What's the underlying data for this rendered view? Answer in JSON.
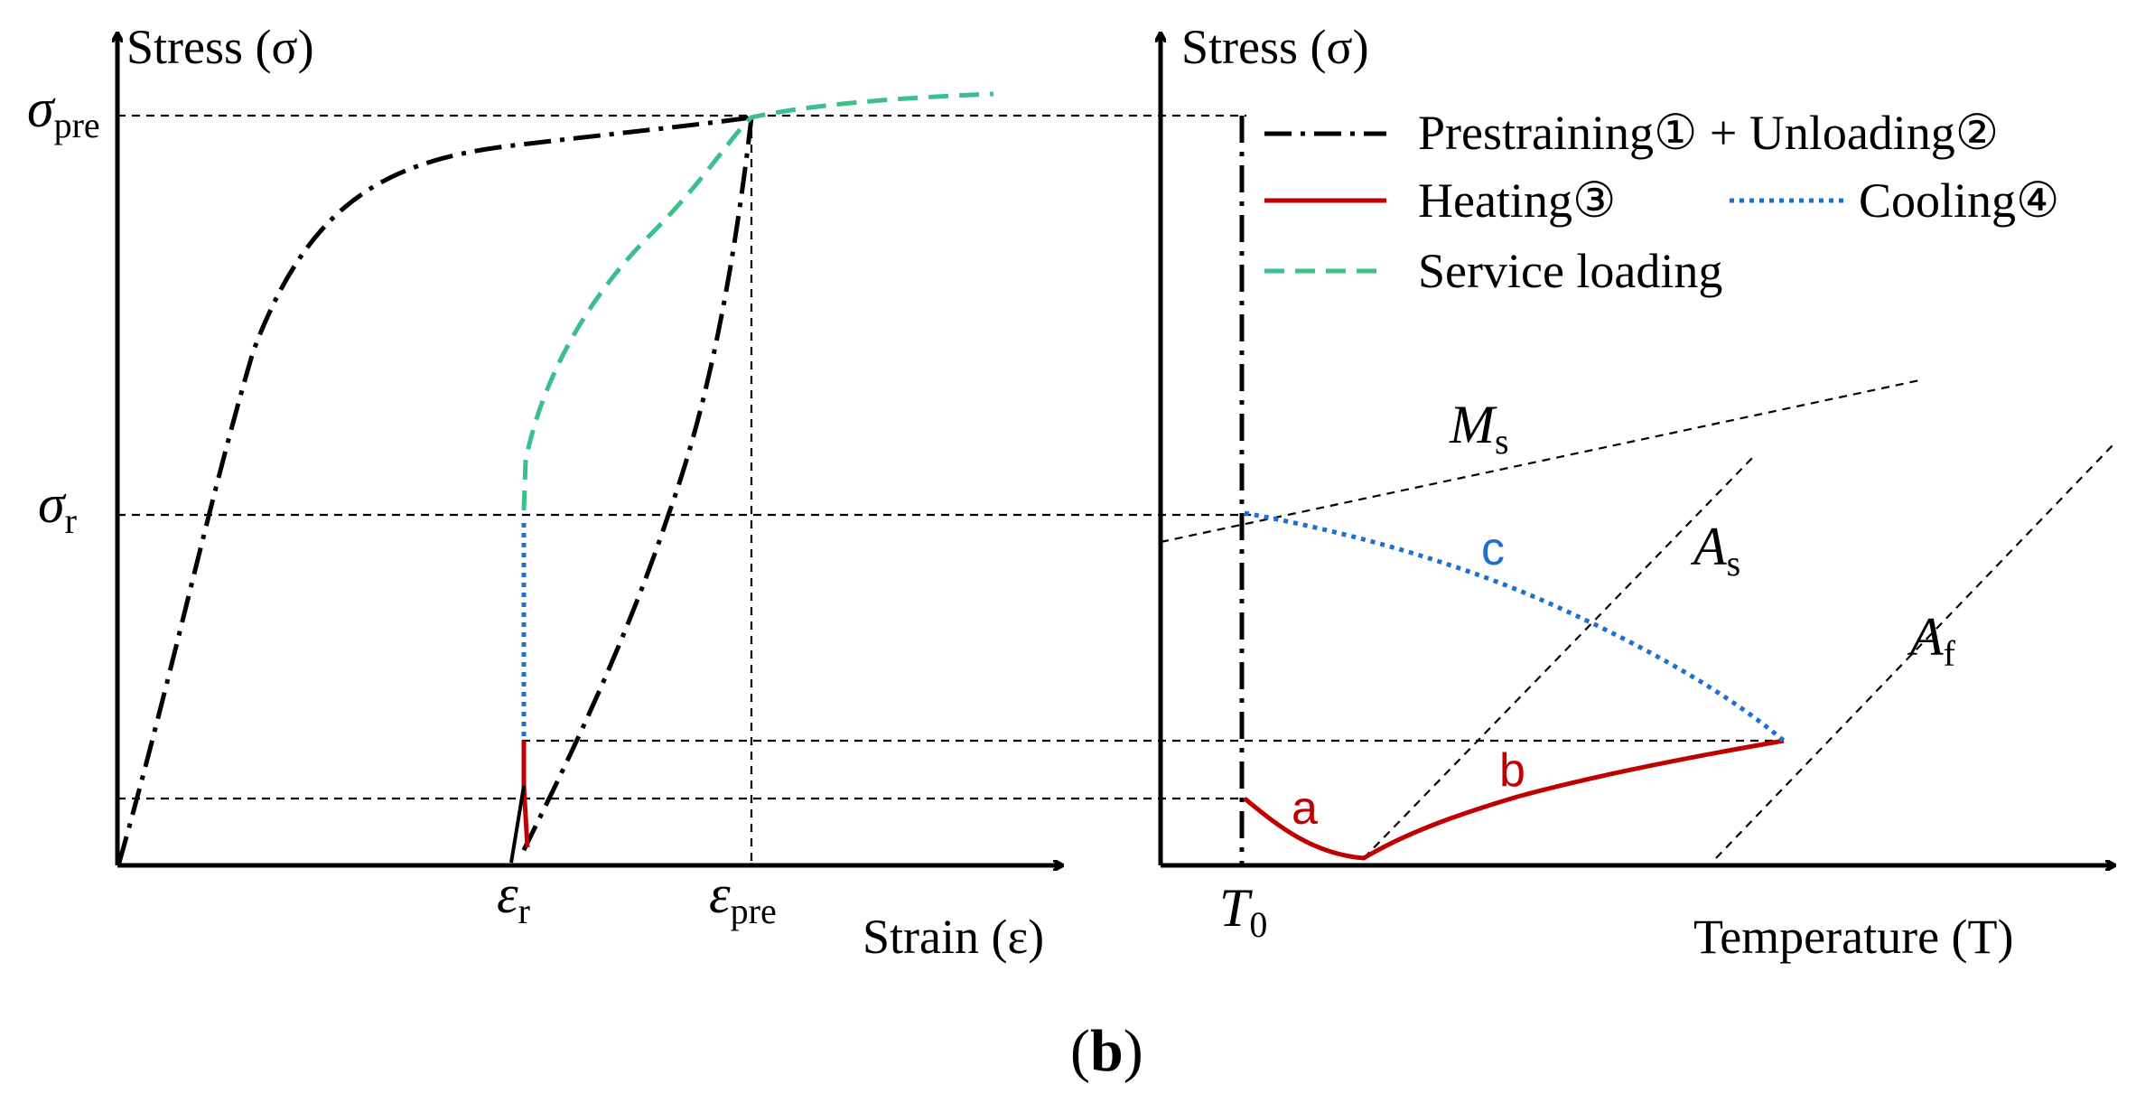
{
  "figure": {
    "panel_label": "b",
    "left_plot": {
      "y_axis_label": "Stress (σ)",
      "x_axis_label": "Strain (ε)",
      "y_ticks": [
        {
          "symbol": "σ",
          "sub": "pre"
        },
        {
          "symbol": "σ",
          "sub": "r"
        }
      ],
      "x_ticks": [
        {
          "symbol": "ε",
          "sub": "r"
        },
        {
          "symbol": "ε",
          "sub": "pre"
        }
      ]
    },
    "right_plot": {
      "y_axis_label": "Stress (σ)",
      "x_axis_label": "Temperature (T)",
      "x_tick": {
        "symbol": "T",
        "sub": "0"
      },
      "line_labels": [
        {
          "symbol": "M",
          "sub": "s"
        },
        {
          "symbol": "A",
          "sub": "s"
        },
        {
          "symbol": "A",
          "sub": "f"
        }
      ],
      "curve_labels": {
        "a": "a",
        "b": "b",
        "c": "c"
      }
    },
    "legend": {
      "prestraining": "Prestraining① + Unloading②",
      "heating": "Heating③",
      "cooling": "Cooling④",
      "service": "Service loading"
    },
    "colors": {
      "prestraining": "#000000",
      "heating": "#c00000",
      "cooling": "#1f6fd1",
      "service": "#3dbf8c"
    }
  }
}
